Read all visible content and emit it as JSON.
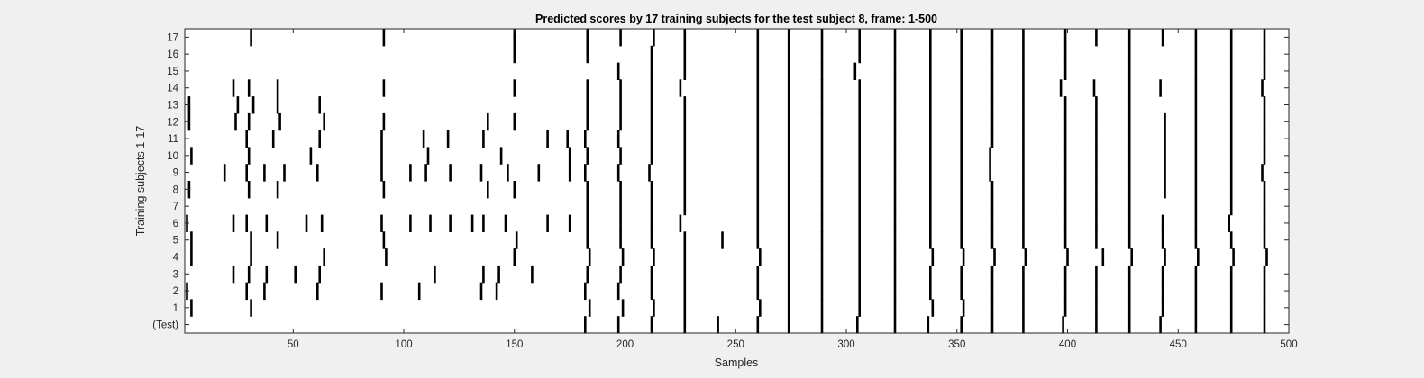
{
  "chart_data": {
    "type": "event raster",
    "title": "Predicted scores by 17 training subjects for the test subject 8, frame: 1-500",
    "xlabel": "Samples",
    "ylabel": "Training subjects 1-17",
    "xlim": [
      1,
      500
    ],
    "xticks": [
      50,
      100,
      150,
      200,
      250,
      300,
      350,
      400,
      450,
      500
    ],
    "yticklabels": [
      "17",
      "16",
      "15",
      "14",
      "13",
      "12",
      "11",
      "10",
      "9",
      "8",
      "7",
      "6",
      "5",
      "4",
      "3",
      "2",
      "1",
      "(Test)"
    ],
    "grid": false,
    "colors": {
      "background": "#f0f0f0",
      "axes": "#ffffff",
      "marks": "#000000"
    },
    "rows": [
      {
        "label": "17",
        "events": [
          31,
          91,
          150,
          183,
          198,
          213,
          227,
          260,
          274,
          289,
          306,
          322,
          338,
          352,
          366,
          380,
          399,
          413,
          428,
          443,
          458,
          474,
          489
        ]
      },
      {
        "label": "16",
        "events": [
          150,
          183,
          212,
          227,
          260,
          274,
          289,
          306,
          322,
          338,
          352,
          366,
          380,
          399,
          428,
          458,
          474,
          489
        ]
      },
      {
        "label": "15",
        "events": [
          197,
          212,
          227,
          260,
          274,
          289,
          304,
          322,
          338,
          352,
          366,
          380,
          399,
          428,
          458,
          474,
          489
        ]
      },
      {
        "label": "14",
        "events": [
          23,
          30,
          43,
          91,
          150,
          183,
          198,
          212,
          225,
          260,
          274,
          289,
          306,
          322,
          338,
          352,
          366,
          380,
          397,
          412,
          428,
          442,
          458,
          474,
          488
        ]
      },
      {
        "label": "13",
        "events": [
          3,
          25,
          32,
          43,
          62,
          183,
          198,
          212,
          227,
          260,
          274,
          289,
          306,
          322,
          338,
          352,
          366,
          380,
          399,
          413,
          428,
          458,
          474,
          489
        ]
      },
      {
        "label": "12",
        "events": [
          3,
          24,
          30,
          44,
          64,
          91,
          138,
          150,
          183,
          198,
          212,
          227,
          260,
          274,
          289,
          306,
          322,
          338,
          352,
          366,
          380,
          399,
          413,
          428,
          444,
          458,
          474,
          489
        ]
      },
      {
        "label": "11",
        "events": [
          29,
          41,
          62,
          90,
          109,
          120,
          136,
          165,
          174,
          182,
          197,
          212,
          227,
          260,
          274,
          289,
          306,
          322,
          338,
          352,
          366,
          380,
          399,
          413,
          428,
          444,
          458,
          474,
          489
        ]
      },
      {
        "label": "10",
        "events": [
          4,
          30,
          58,
          90,
          111,
          144,
          175,
          183,
          198,
          212,
          227,
          260,
          274,
          289,
          306,
          322,
          338,
          352,
          365,
          380,
          399,
          413,
          428,
          444,
          458,
          474,
          489
        ]
      },
      {
        "label": "9",
        "events": [
          19,
          29,
          37,
          46,
          61,
          90,
          103,
          110,
          121,
          135,
          147,
          161,
          175,
          182,
          197,
          211,
          227,
          260,
          274,
          289,
          306,
          322,
          338,
          352,
          365,
          380,
          399,
          413,
          428,
          444,
          458,
          474,
          488
        ]
      },
      {
        "label": "8",
        "events": [
          3,
          30,
          43,
          91,
          138,
          150,
          183,
          198,
          212,
          227,
          260,
          274,
          289,
          306,
          322,
          338,
          352,
          366,
          380,
          399,
          413,
          428,
          444,
          458,
          474,
          489
        ]
      },
      {
        "label": "7",
        "events": [
          183,
          198,
          212,
          227,
          260,
          274,
          289,
          306,
          322,
          338,
          352,
          366,
          380,
          399,
          413,
          428,
          458,
          474,
          489
        ]
      },
      {
        "label": "6",
        "events": [
          2,
          23,
          29,
          38,
          56,
          63,
          90,
          103,
          112,
          121,
          131,
          136,
          146,
          165,
          175,
          183,
          198,
          212,
          225,
          260,
          274,
          289,
          306,
          322,
          338,
          352,
          366,
          380,
          399,
          413,
          428,
          443,
          458,
          473,
          489
        ]
      },
      {
        "label": "5",
        "events": [
          4,
          31,
          43,
          91,
          151,
          183,
          198,
          212,
          227,
          244,
          260,
          274,
          289,
          306,
          322,
          338,
          352,
          366,
          380,
          399,
          413,
          428,
          443,
          458,
          474,
          489
        ]
      },
      {
        "label": "4",
        "events": [
          4,
          31,
          64,
          92,
          150,
          184,
          199,
          213,
          227,
          261,
          274,
          289,
          306,
          322,
          339,
          353,
          367,
          381,
          400,
          416,
          429,
          444,
          459,
          475,
          490
        ]
      },
      {
        "label": "3",
        "events": [
          23,
          30,
          38,
          51,
          62,
          114,
          136,
          143,
          158,
          183,
          198,
          212,
          227,
          260,
          274,
          289,
          306,
          322,
          338,
          352,
          366,
          380,
          399,
          413,
          428,
          443,
          458,
          474,
          489
        ]
      },
      {
        "label": "2",
        "events": [
          2,
          29,
          37,
          61,
          90,
          107,
          135,
          142,
          182,
          197,
          212,
          227,
          260,
          274,
          289,
          306,
          322,
          338,
          352,
          366,
          380,
          399,
          413,
          428,
          443,
          458,
          474,
          489
        ]
      },
      {
        "label": "1",
        "events": [
          4,
          31,
          184,
          199,
          213,
          227,
          261,
          274,
          289,
          306,
          322,
          339,
          353,
          366,
          380,
          399,
          413,
          428,
          443,
          458,
          474,
          489
        ]
      },
      {
        "label": "(Test)",
        "events": [
          182,
          197,
          212,
          227,
          242,
          260,
          274,
          289,
          305,
          322,
          337,
          352,
          366,
          380,
          398,
          413,
          428,
          442,
          458,
          474,
          489
        ]
      }
    ]
  }
}
